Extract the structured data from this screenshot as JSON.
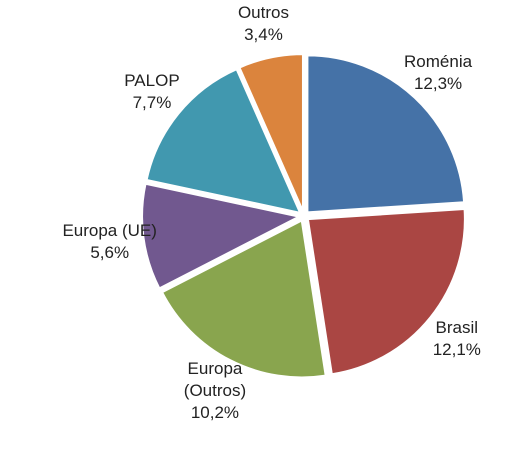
{
  "chart_data": {
    "type": "pie",
    "categories": [
      "Roménia",
      "Brasil",
      "Europa (Outros)",
      "Europa (UE)",
      "PALOP",
      "Outros"
    ],
    "values": [
      12.3,
      12.1,
      10.2,
      5.6,
      7.7,
      3.4
    ],
    "value_labels": [
      "12,3%",
      "12,1%",
      "10,2%",
      "5,6%",
      "7,7%",
      "3,4%"
    ],
    "colors": [
      "#4572a7",
      "#aa4643",
      "#89a54e",
      "#71588f",
      "#4198af",
      "#db843d"
    ]
  }
}
